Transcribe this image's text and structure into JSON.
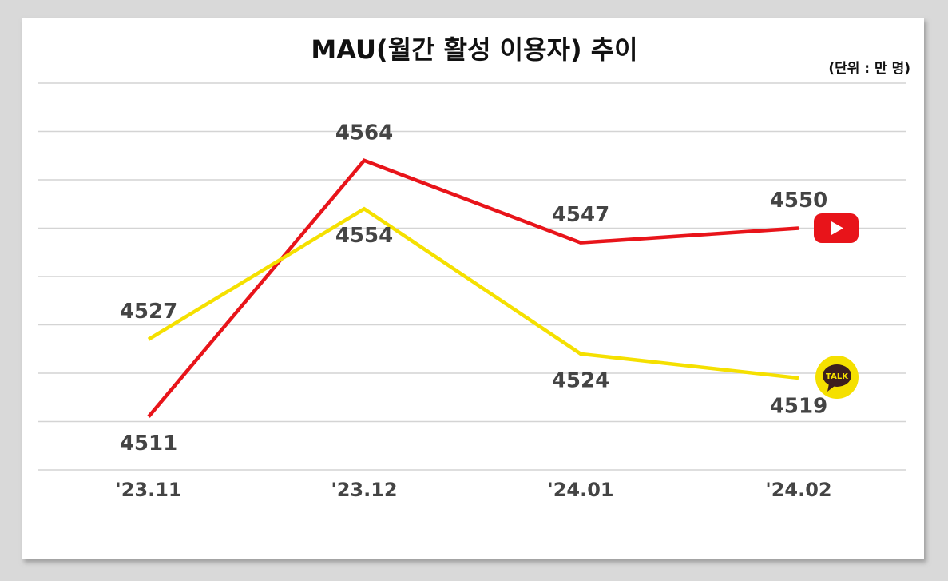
{
  "chart_data": {
    "type": "line",
    "title": "MAU(월간 활성 이용자) 추이",
    "unit_note": "(단위 :  만 명)",
    "categories": [
      "'23.11",
      "'23.12",
      "'24.01",
      "'24.02"
    ],
    "series": [
      {
        "color": "#e8141a",
        "values": [
          4511,
          4564,
          4547,
          4550
        ]
      },
      {
        "color": "#f5e000",
        "values": [
          4527,
          4554,
          4524,
          4519
        ],
        "icon_text": "TALK"
      }
    ],
    "ylim": [
      4500,
      4580
    ],
    "yticks": [
      4500,
      4510,
      4520,
      4530,
      4540,
      4550,
      4560,
      4570,
      4580
    ],
    "grid": true
  }
}
